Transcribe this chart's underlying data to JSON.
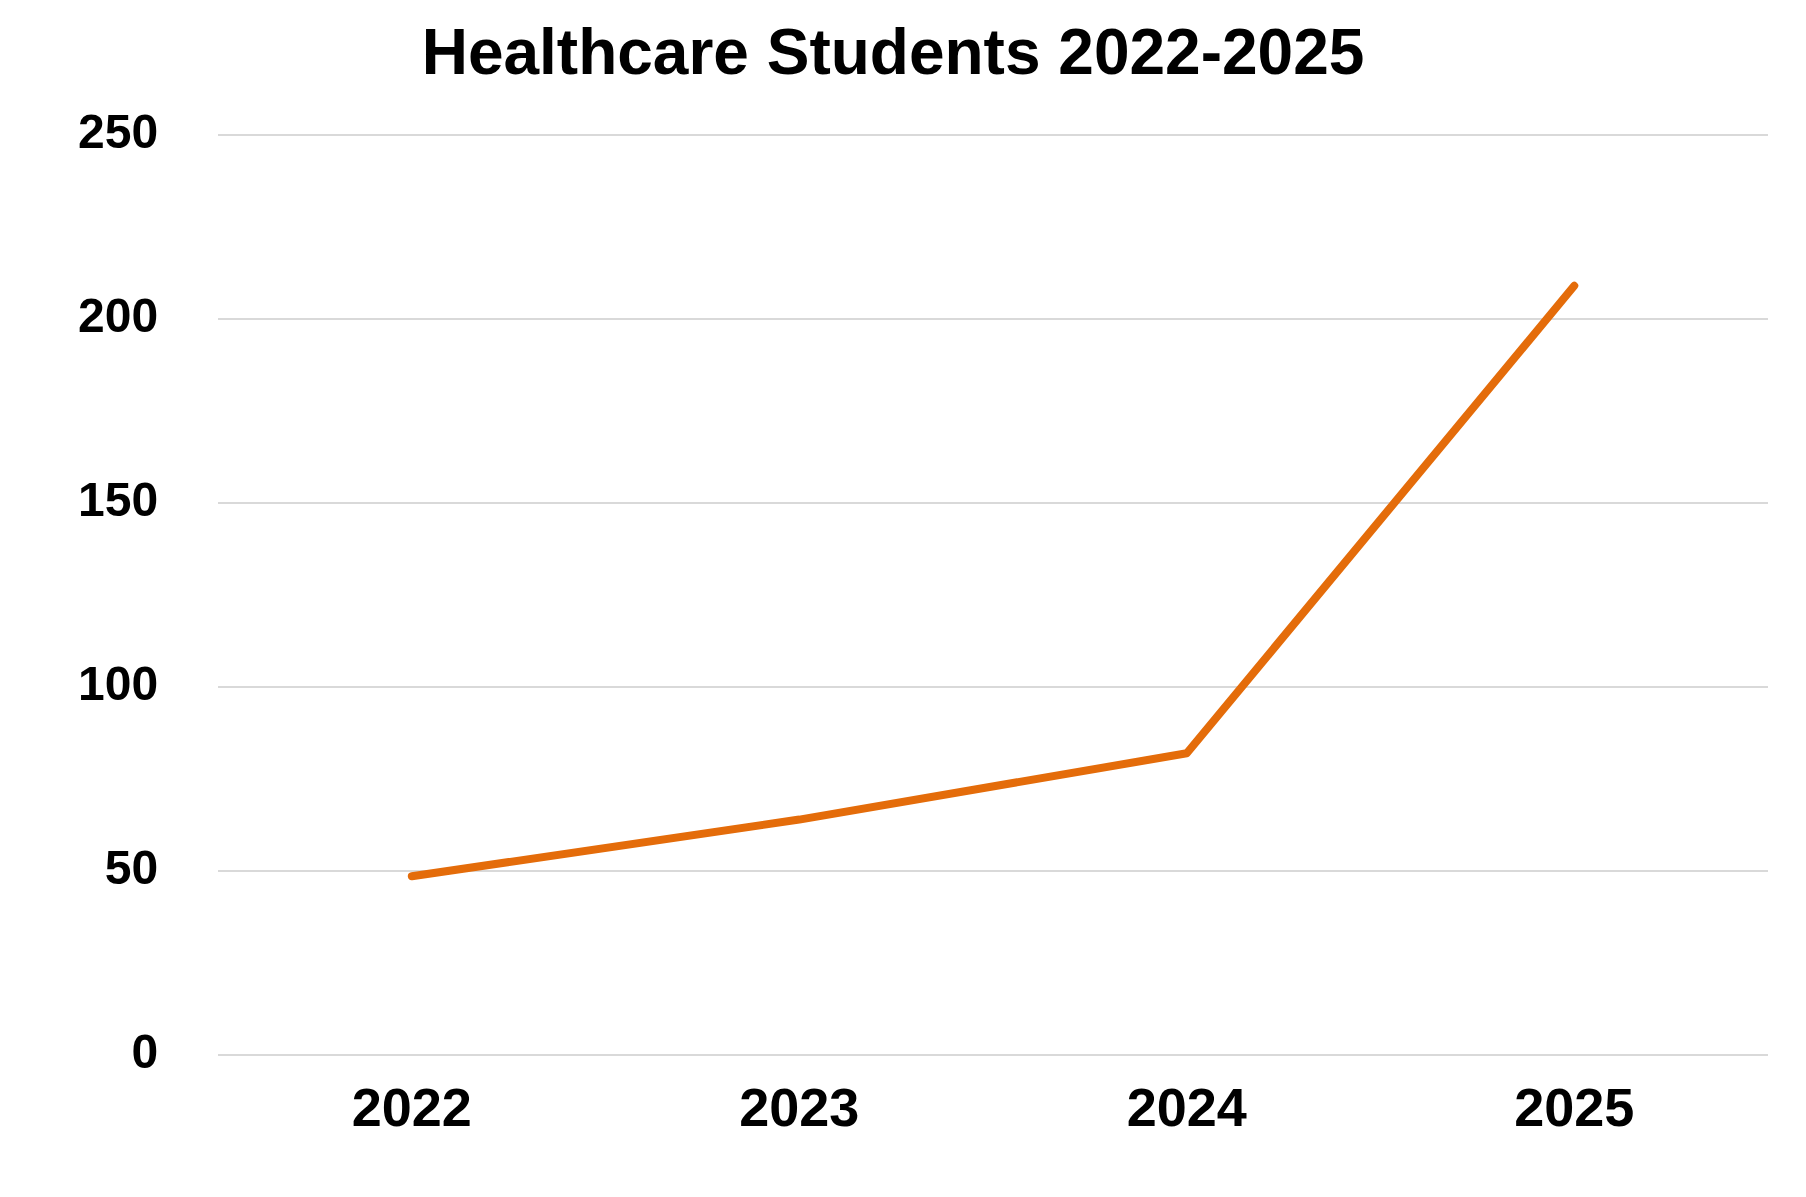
{
  "chart_data": {
    "type": "line",
    "title": "Healthcare Students 2022-2025",
    "categories": [
      "2022",
      "2023",
      "2024",
      "2025"
    ],
    "series": [
      {
        "color": "#e46c0a",
        "values": [
          48.6,
          64,
          82,
          209
        ]
      }
    ],
    "ylim": [
      0,
      250
    ],
    "yticks": [
      0,
      50,
      100,
      150,
      200,
      250
    ],
    "grid": "y",
    "legend": false,
    "marker": "none",
    "line_style": "solid"
  }
}
